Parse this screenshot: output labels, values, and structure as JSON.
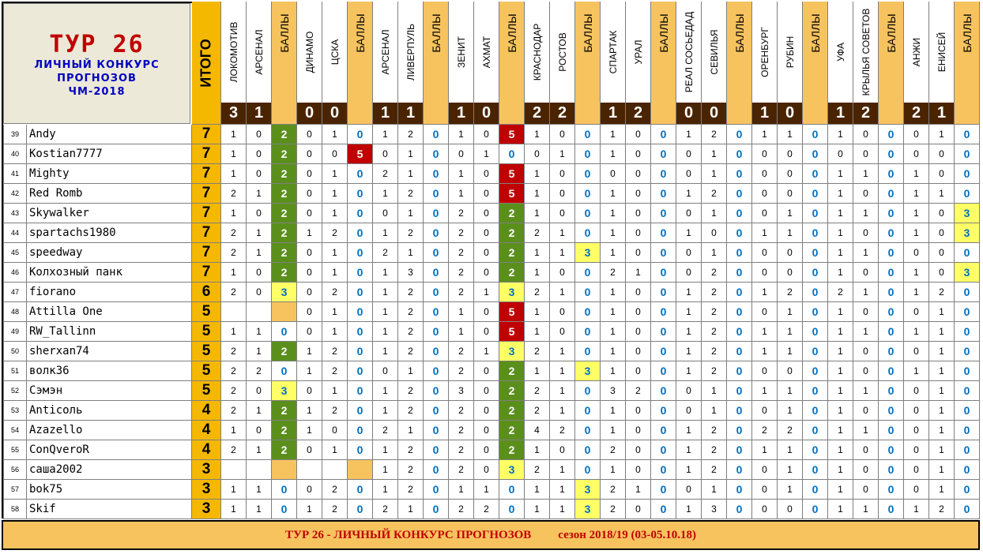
{
  "header": {
    "tur": "ТУР  26",
    "subtitle_lines": [
      "ЛИЧНЫЙ  КОНКУРС",
      "ПРОГНОЗОВ",
      "ЧМ-2018"
    ],
    "itogo_label": "ИТОГО",
    "points_label": "БАЛЛЫ"
  },
  "matches": [
    {
      "home": "ЛОКОМОТИВ",
      "away": "АРСЕНАЛ",
      "score": [
        "3",
        "1"
      ]
    },
    {
      "home": "ДИНАМО",
      "away": "ЦСКА",
      "score": [
        "0",
        "0"
      ]
    },
    {
      "home": "АРСЕНАЛ",
      "away": "ЛИВЕРПУЛЬ",
      "score": [
        "1",
        "1"
      ]
    },
    {
      "home": "ЗЕНИТ",
      "away": "АХМАТ",
      "score": [
        "1",
        "0"
      ]
    },
    {
      "home": "КРАСНОДАР",
      "away": "РОСТОВ",
      "score": [
        "2",
        "2"
      ]
    },
    {
      "home": "СПАРТАК",
      "away": "УРАЛ",
      "score": [
        "1",
        "2"
      ]
    },
    {
      "home": "РЕАЛ СОСЬЕДАД",
      "away": "СЕВИЛЬЯ",
      "score": [
        "0",
        "0"
      ]
    },
    {
      "home": "ОРЕНБУРГ",
      "away": "РУБИН",
      "score": [
        "1",
        "0"
      ]
    },
    {
      "home": "УФА",
      "away": "КРЫЛЬЯ СОВЕТОВ",
      "score": [
        "1",
        "2"
      ]
    },
    {
      "home": "АНЖИ",
      "away": "ЕНИСЕЙ",
      "score": [
        "2",
        "1"
      ]
    }
  ],
  "rows": [
    {
      "n": "39",
      "name": "Andy",
      "total": "7",
      "p": [
        [
          "1",
          "0",
          "2"
        ],
        [
          "0",
          "1",
          "0"
        ],
        [
          "1",
          "2",
          "0"
        ],
        [
          "1",
          "0",
          "5"
        ],
        [
          "1",
          "0",
          "0"
        ],
        [
          "1",
          "0",
          "0"
        ],
        [
          "1",
          "2",
          "0"
        ],
        [
          "1",
          "1",
          "0"
        ],
        [
          "1",
          "0",
          "0"
        ],
        [
          "0",
          "1",
          "0"
        ]
      ]
    },
    {
      "n": "40",
      "name": "Kostian7777",
      "total": "7",
      "p": [
        [
          "1",
          "0",
          "2"
        ],
        [
          "0",
          "0",
          "5"
        ],
        [
          "0",
          "1",
          "0"
        ],
        [
          "0",
          "1",
          "0"
        ],
        [
          "0",
          "1",
          "0"
        ],
        [
          "1",
          "0",
          "0"
        ],
        [
          "0",
          "1",
          "0"
        ],
        [
          "0",
          "0",
          "0"
        ],
        [
          "0",
          "0",
          "0"
        ],
        [
          "0",
          "0",
          "0"
        ]
      ]
    },
    {
      "n": "41",
      "name": "Mighty",
      "total": "7",
      "p": [
        [
          "1",
          "0",
          "2"
        ],
        [
          "0",
          "1",
          "0"
        ],
        [
          "2",
          "1",
          "0"
        ],
        [
          "1",
          "0",
          "5"
        ],
        [
          "1",
          "0",
          "0"
        ],
        [
          "0",
          "0",
          "0"
        ],
        [
          "0",
          "1",
          "0"
        ],
        [
          "0",
          "0",
          "0"
        ],
        [
          "1",
          "1",
          "0"
        ],
        [
          "1",
          "0",
          "0"
        ]
      ]
    },
    {
      "n": "42",
      "name": "Red Romb",
      "total": "7",
      "p": [
        [
          "2",
          "1",
          "2"
        ],
        [
          "0",
          "1",
          "0"
        ],
        [
          "1",
          "2",
          "0"
        ],
        [
          "1",
          "0",
          "5"
        ],
        [
          "1",
          "0",
          "0"
        ],
        [
          "1",
          "0",
          "0"
        ],
        [
          "1",
          "2",
          "0"
        ],
        [
          "0",
          "0",
          "0"
        ],
        [
          "1",
          "0",
          "0"
        ],
        [
          "1",
          "1",
          "0"
        ]
      ]
    },
    {
      "n": "43",
      "name": "Skywalker",
      "total": "7",
      "p": [
        [
          "1",
          "0",
          "2"
        ],
        [
          "0",
          "1",
          "0"
        ],
        [
          "0",
          "1",
          "0"
        ],
        [
          "2",
          "0",
          "2"
        ],
        [
          "1",
          "0",
          "0"
        ],
        [
          "1",
          "0",
          "0"
        ],
        [
          "0",
          "1",
          "0"
        ],
        [
          "0",
          "1",
          "0"
        ],
        [
          "1",
          "1",
          "0"
        ],
        [
          "1",
          "0",
          "3"
        ]
      ]
    },
    {
      "n": "44",
      "name": "spartachs1980",
      "total": "7",
      "p": [
        [
          "2",
          "1",
          "2"
        ],
        [
          "1",
          "2",
          "0"
        ],
        [
          "1",
          "2",
          "0"
        ],
        [
          "2",
          "0",
          "2"
        ],
        [
          "2",
          "1",
          "0"
        ],
        [
          "1",
          "0",
          "0"
        ],
        [
          "1",
          "0",
          "0"
        ],
        [
          "1",
          "1",
          "0"
        ],
        [
          "1",
          "0",
          "0"
        ],
        [
          "1",
          "0",
          "3"
        ]
      ]
    },
    {
      "n": "45",
      "name": "speedway",
      "total": "7",
      "p": [
        [
          "2",
          "1",
          "2"
        ],
        [
          "0",
          "1",
          "0"
        ],
        [
          "2",
          "1",
          "0"
        ],
        [
          "2",
          "0",
          "2"
        ],
        [
          "1",
          "1",
          "3"
        ],
        [
          "1",
          "0",
          "0"
        ],
        [
          "0",
          "1",
          "0"
        ],
        [
          "0",
          "0",
          "0"
        ],
        [
          "1",
          "1",
          "0"
        ],
        [
          "0",
          "0",
          "0"
        ]
      ]
    },
    {
      "n": "46",
      "name": "Колхозный панк",
      "total": "7",
      "p": [
        [
          "1",
          "0",
          "2"
        ],
        [
          "0",
          "1",
          "0"
        ],
        [
          "1",
          "3",
          "0"
        ],
        [
          "2",
          "0",
          "2"
        ],
        [
          "1",
          "0",
          "0"
        ],
        [
          "2",
          "1",
          "0"
        ],
        [
          "0",
          "2",
          "0"
        ],
        [
          "0",
          "0",
          "0"
        ],
        [
          "1",
          "0",
          "0"
        ],
        [
          "1",
          "0",
          "3"
        ]
      ]
    },
    {
      "n": "47",
      "name": "fiorano",
      "total": "6",
      "p": [
        [
          "2",
          "0",
          "3"
        ],
        [
          "0",
          "2",
          "0"
        ],
        [
          "1",
          "2",
          "0"
        ],
        [
          "2",
          "1",
          "3"
        ],
        [
          "2",
          "1",
          "0"
        ],
        [
          "1",
          "0",
          "0"
        ],
        [
          "1",
          "2",
          "0"
        ],
        [
          "1",
          "2",
          "0"
        ],
        [
          "2",
          "1",
          "0"
        ],
        [
          "1",
          "2",
          "0"
        ]
      ]
    },
    {
      "n": "48",
      "name": "Attilla One",
      "total": "5",
      "p": [
        [
          "",
          "",
          ""
        ],
        [
          "0",
          "1",
          "0"
        ],
        [
          "1",
          "2",
          "0"
        ],
        [
          "1",
          "0",
          "5"
        ],
        [
          "1",
          "0",
          "0"
        ],
        [
          "1",
          "0",
          "0"
        ],
        [
          "1",
          "2",
          "0"
        ],
        [
          "0",
          "1",
          "0"
        ],
        [
          "1",
          "0",
          "0"
        ],
        [
          "0",
          "1",
          "0"
        ]
      ]
    },
    {
      "n": "49",
      "name": "RW_Tallinn",
      "total": "5",
      "p": [
        [
          "1",
          "1",
          "0"
        ],
        [
          "0",
          "1",
          "0"
        ],
        [
          "1",
          "2",
          "0"
        ],
        [
          "1",
          "0",
          "5"
        ],
        [
          "1",
          "0",
          "0"
        ],
        [
          "1",
          "0",
          "0"
        ],
        [
          "1",
          "2",
          "0"
        ],
        [
          "1",
          "1",
          "0"
        ],
        [
          "1",
          "1",
          "0"
        ],
        [
          "1",
          "1",
          "0"
        ]
      ]
    },
    {
      "n": "50",
      "name": "sherxan74",
      "total": "5",
      "p": [
        [
          "2",
          "1",
          "2"
        ],
        [
          "1",
          "2",
          "0"
        ],
        [
          "1",
          "2",
          "0"
        ],
        [
          "2",
          "1",
          "3"
        ],
        [
          "2",
          "1",
          "0"
        ],
        [
          "1",
          "0",
          "0"
        ],
        [
          "1",
          "2",
          "0"
        ],
        [
          "1",
          "1",
          "0"
        ],
        [
          "1",
          "0",
          "0"
        ],
        [
          "0",
          "1",
          "0"
        ]
      ]
    },
    {
      "n": "51",
      "name": "волк36",
      "total": "5",
      "p": [
        [
          "2",
          "2",
          "0"
        ],
        [
          "1",
          "2",
          "0"
        ],
        [
          "0",
          "1",
          "0"
        ],
        [
          "2",
          "0",
          "2"
        ],
        [
          "1",
          "1",
          "3"
        ],
        [
          "1",
          "0",
          "0"
        ],
        [
          "1",
          "2",
          "0"
        ],
        [
          "0",
          "0",
          "0"
        ],
        [
          "1",
          "0",
          "0"
        ],
        [
          "1",
          "1",
          "0"
        ]
      ]
    },
    {
      "n": "52",
      "name": "Сэмэн",
      "total": "5",
      "p": [
        [
          "2",
          "0",
          "3"
        ],
        [
          "0",
          "1",
          "0"
        ],
        [
          "1",
          "2",
          "0"
        ],
        [
          "3",
          "0",
          "2"
        ],
        [
          "2",
          "1",
          "0"
        ],
        [
          "3",
          "2",
          "0"
        ],
        [
          "0",
          "1",
          "0"
        ],
        [
          "1",
          "1",
          "0"
        ],
        [
          "1",
          "1",
          "0"
        ],
        [
          "0",
          "1",
          "0"
        ]
      ]
    },
    {
      "n": "53",
      "name": "Anticoль",
      "total": "4",
      "p": [
        [
          "2",
          "1",
          "2"
        ],
        [
          "1",
          "2",
          "0"
        ],
        [
          "1",
          "2",
          "0"
        ],
        [
          "2",
          "0",
          "2"
        ],
        [
          "2",
          "1",
          "0"
        ],
        [
          "1",
          "0",
          "0"
        ],
        [
          "0",
          "1",
          "0"
        ],
        [
          "0",
          "1",
          "0"
        ],
        [
          "1",
          "0",
          "0"
        ],
        [
          "0",
          "1",
          "0"
        ]
      ]
    },
    {
      "n": "54",
      "name": "Azazello",
      "total": "4",
      "p": [
        [
          "1",
          "0",
          "2"
        ],
        [
          "1",
          "0",
          "0"
        ],
        [
          "2",
          "1",
          "0"
        ],
        [
          "2",
          "0",
          "2"
        ],
        [
          "4",
          "2",
          "0"
        ],
        [
          "1",
          "0",
          "0"
        ],
        [
          "1",
          "2",
          "0"
        ],
        [
          "2",
          "2",
          "0"
        ],
        [
          "1",
          "1",
          "0"
        ],
        [
          "0",
          "1",
          "0"
        ]
      ]
    },
    {
      "n": "55",
      "name": "ConQveroR",
      "total": "4",
      "p": [
        [
          "2",
          "1",
          "2"
        ],
        [
          "0",
          "1",
          "0"
        ],
        [
          "1",
          "2",
          "0"
        ],
        [
          "2",
          "0",
          "2"
        ],
        [
          "1",
          "0",
          "0"
        ],
        [
          "2",
          "0",
          "0"
        ],
        [
          "1",
          "2",
          "0"
        ],
        [
          "1",
          "1",
          "0"
        ],
        [
          "1",
          "0",
          "0"
        ],
        [
          "0",
          "1",
          "0"
        ]
      ]
    },
    {
      "n": "56",
      "name": "саша2002",
      "total": "3",
      "p": [
        [
          "",
          "",
          ""
        ],
        [
          "",
          "",
          ""
        ],
        [
          "1",
          "2",
          "0"
        ],
        [
          "2",
          "0",
          "3"
        ],
        [
          "2",
          "1",
          "0"
        ],
        [
          "1",
          "0",
          "0"
        ],
        [
          "1",
          "2",
          "0"
        ],
        [
          "0",
          "1",
          "0"
        ],
        [
          "1",
          "0",
          "0"
        ],
        [
          "0",
          "1",
          "0"
        ]
      ]
    },
    {
      "n": "57",
      "name": "bok75",
      "total": "3",
      "p": [
        [
          "1",
          "1",
          "0"
        ],
        [
          "0",
          "2",
          "0"
        ],
        [
          "1",
          "2",
          "0"
        ],
        [
          "1",
          "1",
          "0"
        ],
        [
          "1",
          "1",
          "3"
        ],
        [
          "2",
          "1",
          "0"
        ],
        [
          "0",
          "1",
          "0"
        ],
        [
          "0",
          "1",
          "0"
        ],
        [
          "1",
          "0",
          "0"
        ],
        [
          "0",
          "1",
          "0"
        ]
      ]
    },
    {
      "n": "58",
      "name": "Skif",
      "total": "3",
      "p": [
        [
          "1",
          "1",
          "0"
        ],
        [
          "1",
          "2",
          "0"
        ],
        [
          "2",
          "1",
          "0"
        ],
        [
          "2",
          "2",
          "0"
        ],
        [
          "1",
          "1",
          "3"
        ],
        [
          "2",
          "0",
          "0"
        ],
        [
          "1",
          "3",
          "0"
        ],
        [
          "0",
          "0",
          "0"
        ],
        [
          "1",
          "1",
          "0"
        ],
        [
          "1",
          "2",
          "0"
        ]
      ]
    }
  ],
  "footer": {
    "left": "ТУР 26 - ЛИЧНЫЙ КОНКУРС ПРОГНОЗОВ",
    "right": "сезон 2018/19  (03-05.10.18)"
  },
  "colors": {
    "orange": "#f7c35f",
    "itogo": "#f4b800",
    "score_bg": "#4a2400",
    "points_blue": "#0070c0",
    "p2": "#5b8f1c",
    "p3": "#ffff66",
    "p5": "#c00000",
    "header_gray": "#ece9d8",
    "grid": "#7f7f7f"
  }
}
